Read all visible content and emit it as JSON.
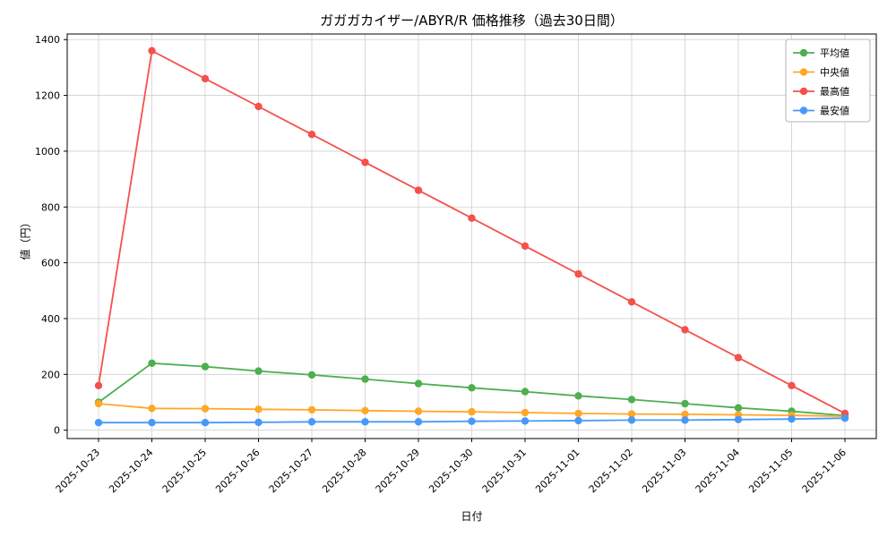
{
  "chart_data": {
    "type": "line",
    "title": "ガガガカイザー/ABYR/R 価格推移（過去30日間）",
    "xlabel": "日付",
    "ylabel": "値（円）",
    "grid": true,
    "legend_position": "upper right",
    "ylim": [
      0,
      1400
    ],
    "yticks": [
      0,
      200,
      400,
      600,
      800,
      1000,
      1200,
      1400
    ],
    "categories": [
      "2025-10-23",
      "2025-10-24",
      "2025-10-25",
      "2025-10-26",
      "2025-10-27",
      "2025-10-28",
      "2025-10-29",
      "2025-10-30",
      "2025-10-31",
      "2025-11-01",
      "2025-11-02",
      "2025-11-03",
      "2025-11-04",
      "2025-11-05",
      "2025-11-06"
    ],
    "series": [
      {
        "key": "average",
        "name": "平均値",
        "color": "#4caf50",
        "values": [
          100,
          240,
          228,
          212,
          198,
          183,
          167,
          152,
          138,
          123,
          110,
          95,
          80,
          68,
          52
        ]
      },
      {
        "key": "median",
        "name": "中央値",
        "color": "#ffa726",
        "values": [
          95,
          78,
          77,
          75,
          73,
          70,
          68,
          66,
          63,
          60,
          58,
          57,
          55,
          53,
          50
        ]
      },
      {
        "key": "max",
        "name": "最高値",
        "color": "#f4514c",
        "values": [
          160,
          1360,
          1260,
          1160,
          1060,
          960,
          860,
          760,
          660,
          560,
          460,
          360,
          260,
          160,
          60
        ]
      },
      {
        "key": "min",
        "name": "最安値",
        "color": "#4898f8",
        "values": [
          27,
          27,
          27,
          28,
          30,
          30,
          30,
          32,
          33,
          34,
          36,
          36,
          38,
          40,
          43
        ]
      }
    ]
  }
}
